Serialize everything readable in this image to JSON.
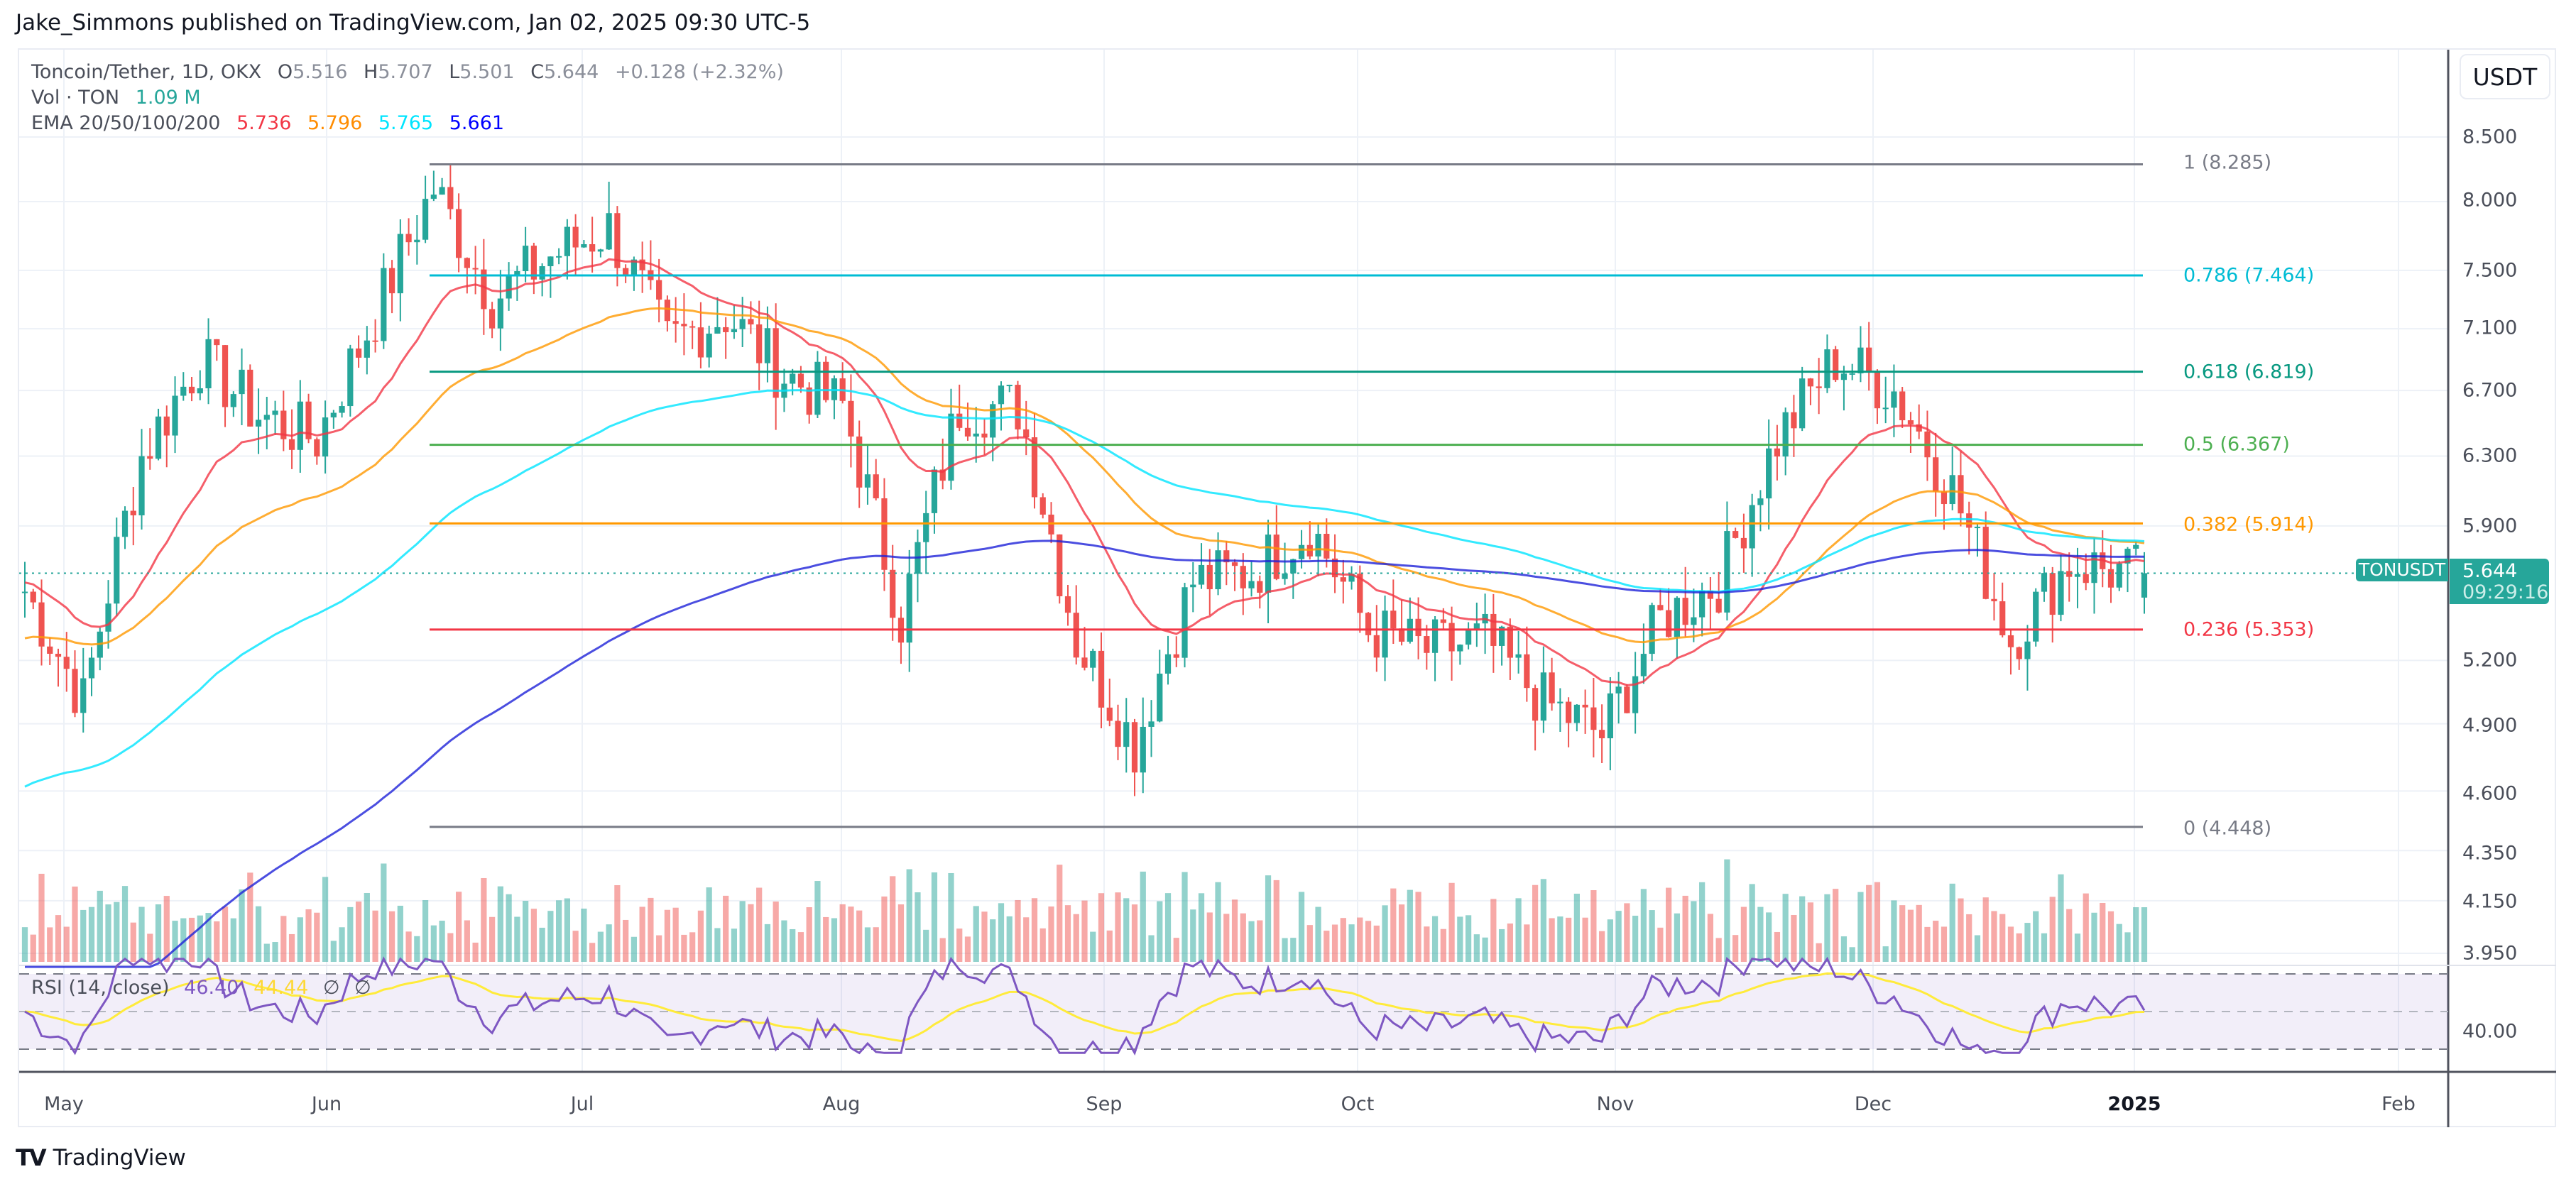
{
  "header": {
    "publish_line": "Jake_Simmons published on TradingView.com, Jan 02, 2025 09:30 UTC-5"
  },
  "legend": {
    "symbol": "Toncoin/Tether, 1D, OKX",
    "open_label": "O",
    "open": "5.516",
    "high_label": "H",
    "high": "5.707",
    "low_label": "L",
    "low": "5.501",
    "close_label": "C",
    "close": "5.644",
    "change": "+0.128 (+2.32%)",
    "vol_label": "Vol · TON",
    "vol_value": "1.09 M",
    "ema_label": "EMA 20/50/100/200",
    "ema_values": [
      "5.736",
      "5.796",
      "5.765",
      "5.661"
    ]
  },
  "price_scale": {
    "currency_button": "USDT",
    "ticks": [
      "8.500",
      "8.000",
      "7.500",
      "7.100",
      "6.700",
      "6.300",
      "5.900",
      "5.200",
      "4.900",
      "4.600",
      "4.350",
      "4.150",
      "3.950"
    ]
  },
  "last_price": {
    "symbol": "TONUSDT",
    "value": "5.644",
    "countdown": "09:29:16"
  },
  "fib_levels": [
    {
      "label": "1 (8.285)",
      "ratio": 1,
      "price": 8.285,
      "color": "#787b86"
    },
    {
      "label": "0.786 (7.464)",
      "ratio": 0.786,
      "price": 7.464,
      "color": "#00bcd4"
    },
    {
      "label": "0.618 (6.819)",
      "ratio": 0.618,
      "price": 6.819,
      "color": "#089981"
    },
    {
      "label": "0.5 (6.367)",
      "ratio": 0.5,
      "price": 6.367,
      "color": "#4caf50"
    },
    {
      "label": "0.382 (5.914)",
      "ratio": 0.382,
      "price": 5.914,
      "color": "#ff9800"
    },
    {
      "label": "0.236 (5.353)",
      "ratio": 0.236,
      "price": 5.353,
      "color": "#f23645"
    },
    {
      "label": "0 (4.448)",
      "ratio": 0,
      "price": 4.448,
      "color": "#787b86"
    }
  ],
  "rsi": {
    "label": "RSI (14, close)",
    "value": "46.40",
    "ma_value": "44.44",
    "extra1": "∅",
    "extra2": "∅",
    "tick": "40.00"
  },
  "x_axis": {
    "ticks": [
      "May",
      "Jun",
      "Jul",
      "Aug",
      "Sep",
      "Oct",
      "Nov",
      "Dec",
      "2025",
      "Feb"
    ]
  },
  "footer": {
    "brand": "TradingView"
  },
  "colors": {
    "up": "#26a69a",
    "down": "#ef5350",
    "ema20": "#f23645",
    "ema50": "#ff9800",
    "ema100": "#00e5ff",
    "ema200": "#1e22d8",
    "rsi": "#7e57c2",
    "rsi_ma": "#ffeb3b"
  },
  "chart_data": {
    "type": "candlestick",
    "title": "Toncoin/Tether, 1D, OKX",
    "xlabel": "",
    "ylabel": "USDT",
    "y_scale": "log",
    "ylim": [
      3.95,
      8.6
    ],
    "x_ticks": [
      "May",
      "Jun",
      "Jul",
      "Aug",
      "Sep",
      "Oct",
      "Nov",
      "Dec",
      "2025",
      "Feb"
    ],
    "y_ticks": [
      8.5,
      8.0,
      7.5,
      7.1,
      6.7,
      6.3,
      5.9,
      5.2,
      4.9,
      4.6,
      4.35,
      4.15,
      3.95
    ],
    "last_candle": {
      "open": 5.516,
      "high": 5.707,
      "low": 5.501,
      "close": 5.644,
      "change": 0.128,
      "change_pct": 2.32
    },
    "volume_last": "1.09M",
    "ema": {
      "ema20": 5.736,
      "ema50": 5.796,
      "ema100": 5.765,
      "ema200": 5.661
    },
    "fibonacci_retracement": {
      "high": 8.285,
      "low": 4.448,
      "levels": [
        [
          1,
          8.285
        ],
        [
          0.786,
          7.464
        ],
        [
          0.618,
          6.819
        ],
        [
          0.5,
          6.367
        ],
        [
          0.382,
          5.914
        ],
        [
          0.236,
          5.353
        ],
        [
          0,
          4.448
        ]
      ]
    },
    "rsi": {
      "period": 14,
      "value": 46.4,
      "ma": 44.44,
      "bands": [
        70,
        50,
        30
      ]
    },
    "approx_closes_weekly": {
      "x": [
        "Apr 22",
        "Apr 29",
        "May 06",
        "May 13",
        "May 20",
        "May 27",
        "Jun 03",
        "Jun 10",
        "Jun 17",
        "Jun 24",
        "Jul 01",
        "Jul 08",
        "Jul 15",
        "Jul 22",
        "Jul 29",
        "Aug 05",
        "Aug 12",
        "Aug 19",
        "Aug 26",
        "Sep 02",
        "Sep 09",
        "Sep 16",
        "Sep 23",
        "Sep 30",
        "Oct 07",
        "Oct 14",
        "Oct 21",
        "Oct 28",
        "Nov 04",
        "Nov 11",
        "Nov 18",
        "Nov 25",
        "Dec 02",
        "Dec 09",
        "Dec 16",
        "Dec 23",
        "Dec 30"
      ],
      "values": [
        5.55,
        5.0,
        6.3,
        6.9,
        6.55,
        6.4,
        7.2,
        8.1,
        7.3,
        7.6,
        7.8,
        7.0,
        7.2,
        6.8,
        6.6,
        5.4,
        6.6,
        6.6,
        5.3,
        4.8,
        5.6,
        5.65,
        5.9,
        5.35,
        5.25,
        5.3,
        5.0,
        4.85,
        5.4,
        5.6,
        6.4,
        6.9,
        6.7,
        6.1,
        5.3,
        5.7,
        5.644
      ]
    }
  }
}
